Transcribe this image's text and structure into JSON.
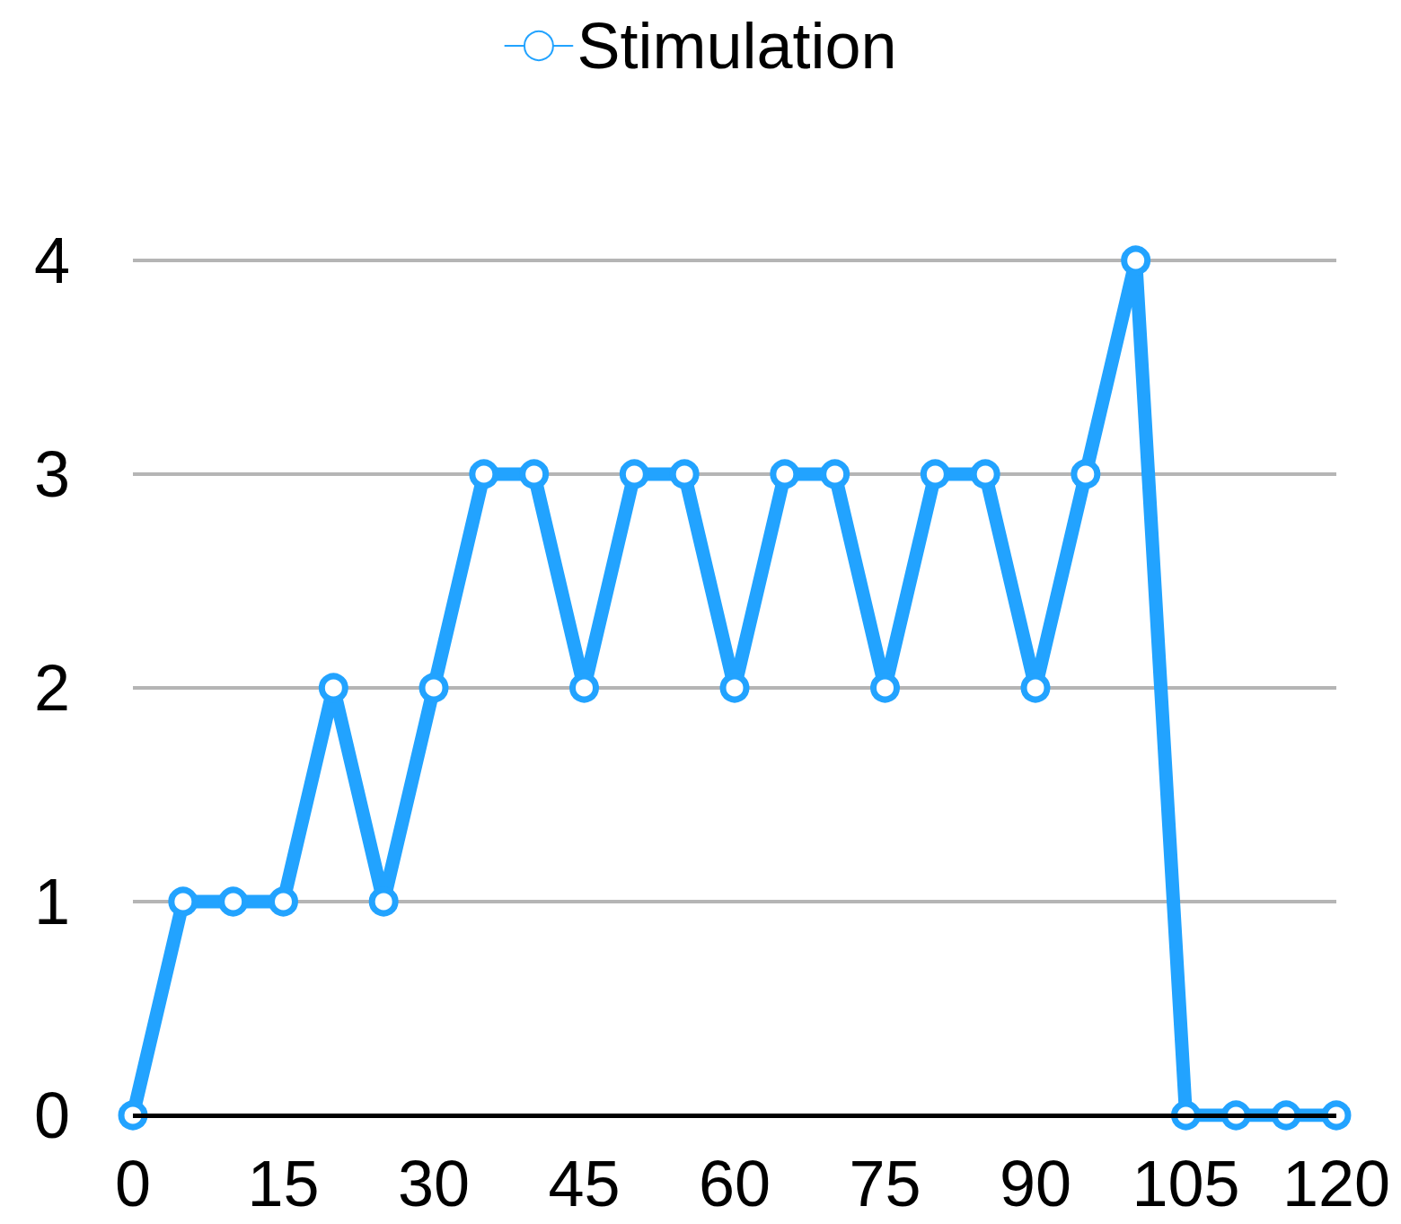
{
  "chart_data": {
    "type": "line",
    "x": [
      0,
      5,
      10,
      15,
      20,
      25,
      30,
      35,
      40,
      45,
      50,
      55,
      60,
      65,
      70,
      75,
      80,
      85,
      90,
      95,
      100,
      105,
      110,
      115,
      120
    ],
    "series": [
      {
        "name": "Stimulation",
        "color": "#22a3ff",
        "values": [
          0,
          1,
          1,
          1,
          2,
          1,
          2,
          3,
          3,
          2,
          3,
          3,
          2,
          3,
          3,
          2,
          3,
          3,
          2,
          3,
          4,
          0,
          0,
          0,
          0
        ]
      }
    ],
    "xlim": [
      0,
      120
    ],
    "xticks": [
      0,
      15,
      30,
      45,
      60,
      75,
      90,
      105,
      120
    ],
    "ylim": [
      0,
      4
    ],
    "yticks": [
      0,
      1,
      2,
      3,
      4
    ],
    "grid": "y",
    "legend": "top",
    "marker": "circle",
    "line_style": "solid"
  }
}
